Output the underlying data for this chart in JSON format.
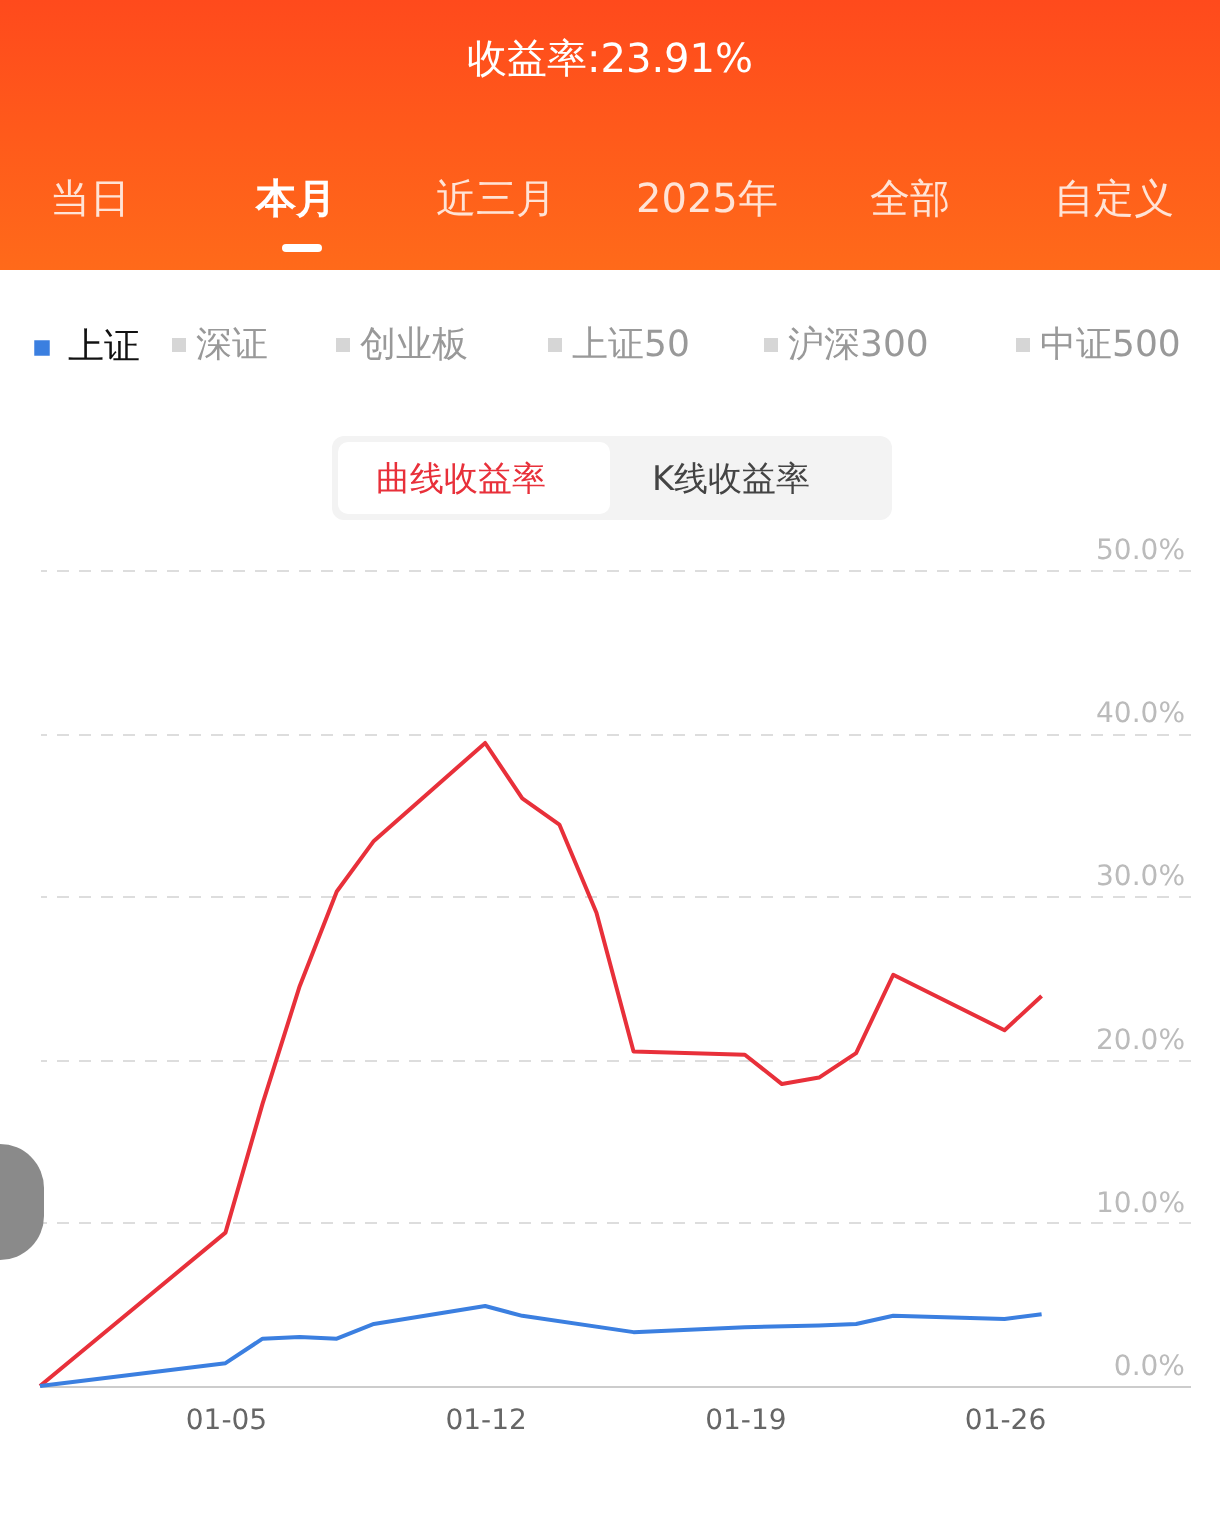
{
  "chart_data": {
    "type": "line",
    "title": "收益率:23.91%",
    "annotations": [
      "当日",
      "本月",
      "近三月",
      "2025年",
      "全部",
      "自定义",
      "深证",
      "创业板",
      "上证50",
      "沪深300",
      "中证500",
      "曲线收益率",
      "K线收益率"
    ],
    "series": [
      {
        "color": "#e8303a",
        "x": [
          "2024-12-31",
          "2025-01-05",
          "2025-01-06",
          "2025-01-07",
          "2025-01-08",
          "2025-01-09",
          "2025-01-12",
          "2025-01-13",
          "2025-01-14",
          "2025-01-15",
          "2025-01-16",
          "2025-01-19",
          "2025-01-20",
          "2025-01-21",
          "2025-01-22",
          "2025-01-23",
          "2025-01-26",
          "2025-01-27"
        ],
        "values": [
          0,
          9.4,
          17.3,
          24.5,
          30.3,
          33.4,
          39.4,
          36.0,
          34.4,
          29.0,
          20.5,
          20.3,
          18.5,
          18.9,
          20.4,
          25.2,
          21.8,
          23.9
        ]
      },
      {
        "name": "上证",
        "color": "#3b7fe0",
        "x": [
          "2024-12-31",
          "2025-01-05",
          "2025-01-06",
          "2025-01-07",
          "2025-01-08",
          "2025-01-09",
          "2025-01-12",
          "2025-01-13",
          "2025-01-16",
          "2025-01-19",
          "2025-01-21",
          "2025-01-22",
          "2025-01-23",
          "2025-01-26",
          "2025-01-27"
        ],
        "values": [
          0,
          1.4,
          2.9,
          3.0,
          2.9,
          3.8,
          4.9,
          4.3,
          3.3,
          3.6,
          3.7,
          3.8,
          4.3,
          4.1,
          4.4
        ]
      }
    ],
    "xlim": [
      "2024-12-31",
      "2025-01-31"
    ],
    "xticks": [
      {
        "value": "2025-01-05",
        "label": "01-05"
      },
      {
        "value": "2025-01-12",
        "label": "01-12"
      },
      {
        "value": "2025-01-19",
        "label": "01-19"
      },
      {
        "value": "2025-01-26",
        "label": "01-26"
      }
    ],
    "ylim": [
      0,
      50
    ],
    "yticks": [
      {
        "value": 0,
        "label": "0.0%"
      },
      {
        "value": 10,
        "label": "10.0%"
      },
      {
        "value": 20,
        "label": "20.0%"
      },
      {
        "value": 30,
        "label": "30.0%"
      },
      {
        "value": 40,
        "label": "40.0%"
      },
      {
        "value": 50,
        "label": "50.0%"
      }
    ],
    "grid": "y",
    "legend": "top left",
    "marker": "none",
    "line_style": "solid"
  }
}
